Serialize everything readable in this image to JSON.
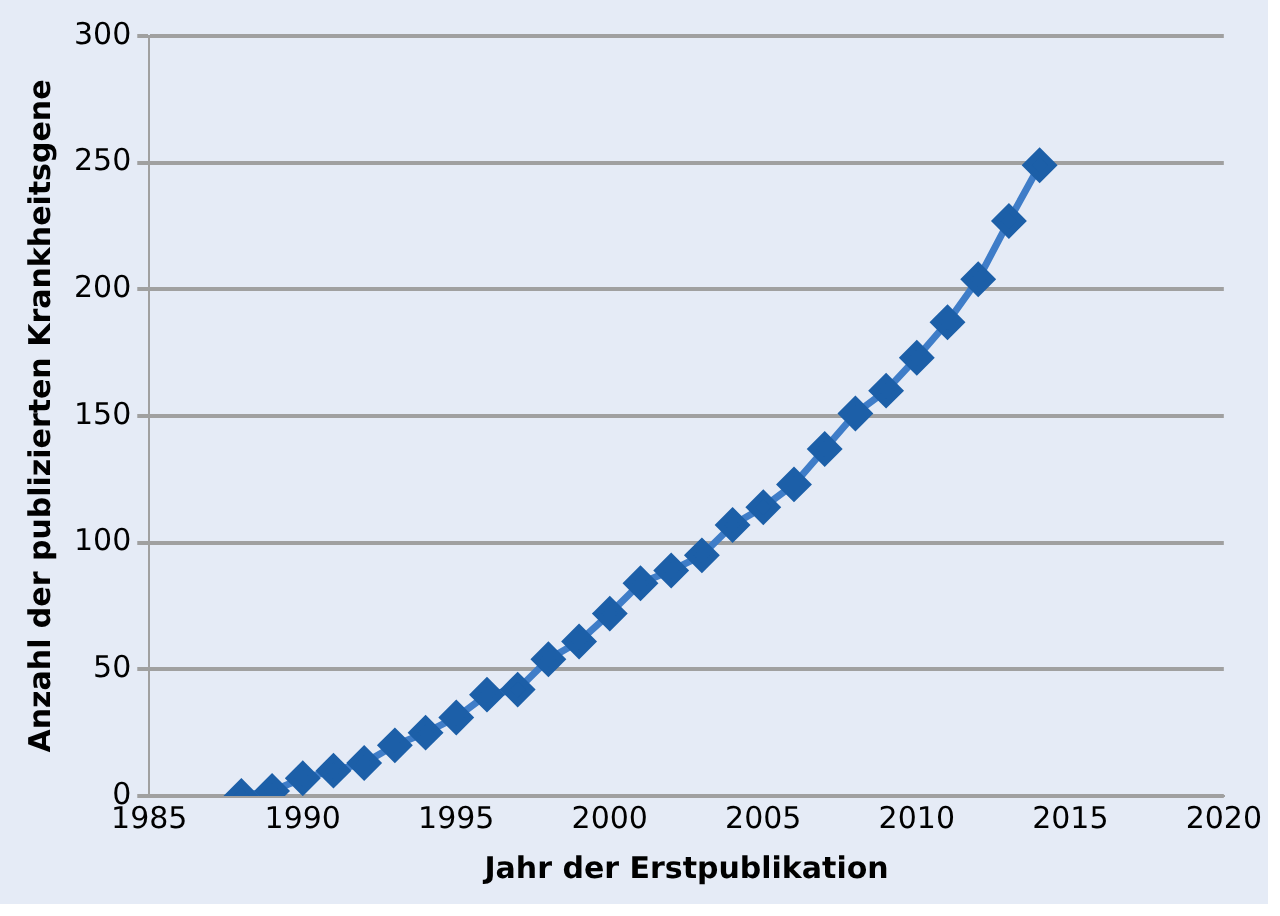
{
  "chart_data": {
    "type": "line",
    "xlabel": "Jahr der Erstpublikation",
    "ylabel": "Anzahl der publizierten Krankheitsgene",
    "x": [
      1988,
      1989,
      1990,
      1991,
      1992,
      1993,
      1994,
      1995,
      1996,
      1997,
      1998,
      1999,
      2000,
      2001,
      2002,
      2003,
      2004,
      2005,
      2006,
      2007,
      2008,
      2009,
      2010,
      2011,
      2012,
      2013,
      2014
    ],
    "series": [
      {
        "color": "#1c5fa8",
        "values": [
          0,
          2,
          7,
          10,
          13,
          20,
          25,
          31,
          40,
          42,
          54,
          61,
          72,
          84,
          89,
          95,
          107,
          114,
          123,
          137,
          151,
          160,
          173,
          187,
          204,
          227,
          249
        ]
      }
    ],
    "xlim": [
      1985,
      2020
    ],
    "xticks": [
      1985,
      1990,
      1995,
      2000,
      2005,
      2010,
      2015,
      2020
    ],
    "ylim": [
      0,
      300
    ],
    "yticks": [
      0,
      50,
      100,
      150,
      200,
      250,
      300
    ],
    "grid": "y",
    "marker": "diamond",
    "line_style": "solid",
    "legend": false
  }
}
